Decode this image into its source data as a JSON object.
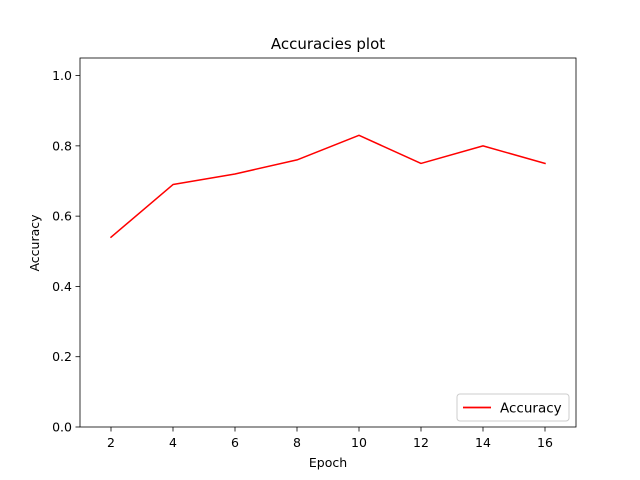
{
  "chart_data": {
    "type": "line",
    "title": "Accuracies plot",
    "xlabel": "Epoch",
    "ylabel": "Accuracy",
    "xlim": [
      1,
      17
    ],
    "ylim": [
      0,
      1.05
    ],
    "xticks": [
      2,
      4,
      6,
      8,
      10,
      12,
      14,
      16
    ],
    "yticks": [
      0.0,
      0.2,
      0.4,
      0.6,
      0.8,
      1.0
    ],
    "xtick_labels": [
      "2",
      "4",
      "6",
      "8",
      "10",
      "12",
      "14",
      "16"
    ],
    "ytick_labels": [
      "0.0",
      "0.2",
      "0.4",
      "0.6",
      "0.8",
      "1.0"
    ],
    "grid": false,
    "legend_position": "lower-right",
    "series": [
      {
        "name": "Accuracy",
        "color": "#ff0000",
        "x": [
          2,
          4,
          6,
          8,
          10,
          12,
          14,
          16
        ],
        "y": [
          0.54,
          0.69,
          0.72,
          0.76,
          0.83,
          0.75,
          0.8,
          0.75
        ]
      }
    ]
  }
}
